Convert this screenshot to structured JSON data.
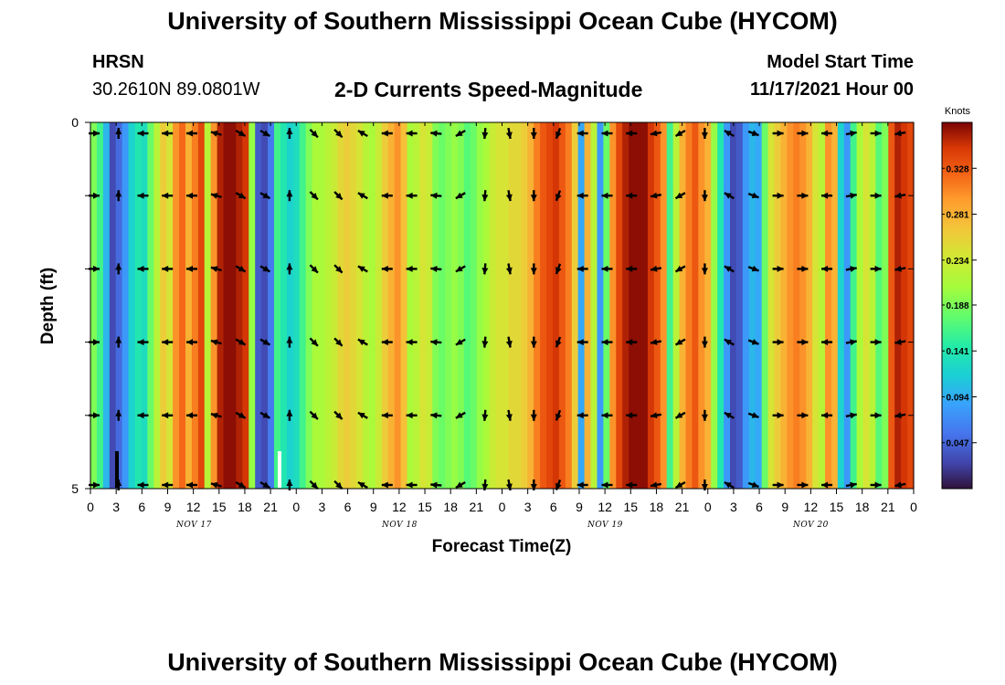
{
  "header": {
    "title": "University of Southern Mississippi Ocean Cube (HYCOM)",
    "station": "HRSN",
    "coords": "30.2610N  89.0801W",
    "product": "2-D Currents Speed-Magnitude",
    "model_start_label": "Model Start Time",
    "model_start_value": "11/17/2021 Hour 00"
  },
  "footer": {
    "title": "University of Southern Mississippi Ocean Cube (HYCOM)"
  },
  "chart_data": {
    "type": "heatmap",
    "title": "2-D Currents Speed-Magnitude",
    "xlabel": "Forecast Time(Z)",
    "ylabel": "Depth (ft)",
    "ylim": [
      0,
      5
    ],
    "y_tick_labels": [
      "0",
      "5"
    ],
    "x_tick_labels": [
      "0",
      "3",
      "6",
      "9",
      "12",
      "15",
      "18",
      "21",
      "0",
      "3",
      "6",
      "9",
      "12",
      "15",
      "18",
      "21",
      "0",
      "3",
      "6",
      "9",
      "12",
      "15",
      "18",
      "21",
      "0",
      "3",
      "6",
      "9",
      "12",
      "15",
      "18",
      "21",
      "0"
    ],
    "day_labels": [
      "NOV 17",
      "NOV 18",
      "NOV 19",
      "NOV 20"
    ],
    "colorbar": {
      "label": "Knots",
      "min": 0.0,
      "max": 0.375,
      "ticks": [
        "0.047",
        "0.094",
        "0.141",
        "0.188",
        "0.234",
        "0.281",
        "0.328"
      ]
    },
    "speed_knots_by_column": [
      0.19,
      0.16,
      0.1,
      0.03,
      0.05,
      0.08,
      0.12,
      0.14,
      0.13,
      0.18,
      0.22,
      0.26,
      0.24,
      0.3,
      0.32,
      0.28,
      0.31,
      0.34,
      0.22,
      0.3,
      0.36,
      0.37,
      0.37,
      0.36,
      0.35,
      0.2,
      0.04,
      0.03,
      0.06,
      0.16,
      0.14,
      0.12,
      0.13,
      0.16,
      0.19,
      0.21,
      0.21,
      0.22,
      0.23,
      0.25,
      0.26,
      0.25,
      0.24,
      0.22,
      0.21,
      0.23,
      0.26,
      0.28,
      0.3,
      0.27,
      0.21,
      0.22,
      0.24,
      0.23,
      0.19,
      0.18,
      0.19,
      0.2,
      0.19,
      0.17,
      0.18,
      0.2,
      0.21,
      0.23,
      0.24,
      0.24,
      0.25,
      0.25,
      0.26,
      0.28,
      0.31,
      0.33,
      0.34,
      0.35,
      0.33,
      0.31,
      0.26,
      0.09,
      0.28,
      0.22,
      0.08,
      0.18,
      0.3,
      0.34,
      0.36,
      0.37,
      0.37,
      0.37,
      0.35,
      0.33,
      0.3,
      0.16,
      0.22,
      0.28,
      0.31,
      0.33,
      0.3,
      0.28,
      0.2,
      0.14,
      0.08,
      0.03,
      0.04,
      0.08,
      0.1,
      0.09,
      0.18,
      0.24,
      0.26,
      0.28,
      0.3,
      0.31,
      0.3,
      0.28,
      0.24,
      0.22,
      0.3,
      0.28,
      0.12,
      0.08,
      0.16,
      0.21,
      0.24,
      0.22,
      0.17,
      0.19,
      0.33,
      0.36,
      0.35,
      0.34
    ],
    "arrow_depth_rows": [
      1,
      2,
      3,
      4
    ],
    "arrow_directions_deg": [
      90,
      0,
      270,
      270,
      270,
      285,
      120,
      120,
      0,
      135,
      135,
      300,
      270,
      270,
      275,
      240,
      185,
      170,
      180,
      200,
      270,
      270,
      270,
      260,
      240,
      180,
      300,
      110,
      90,
      90,
      270,
      80,
      90,
      260
    ]
  }
}
